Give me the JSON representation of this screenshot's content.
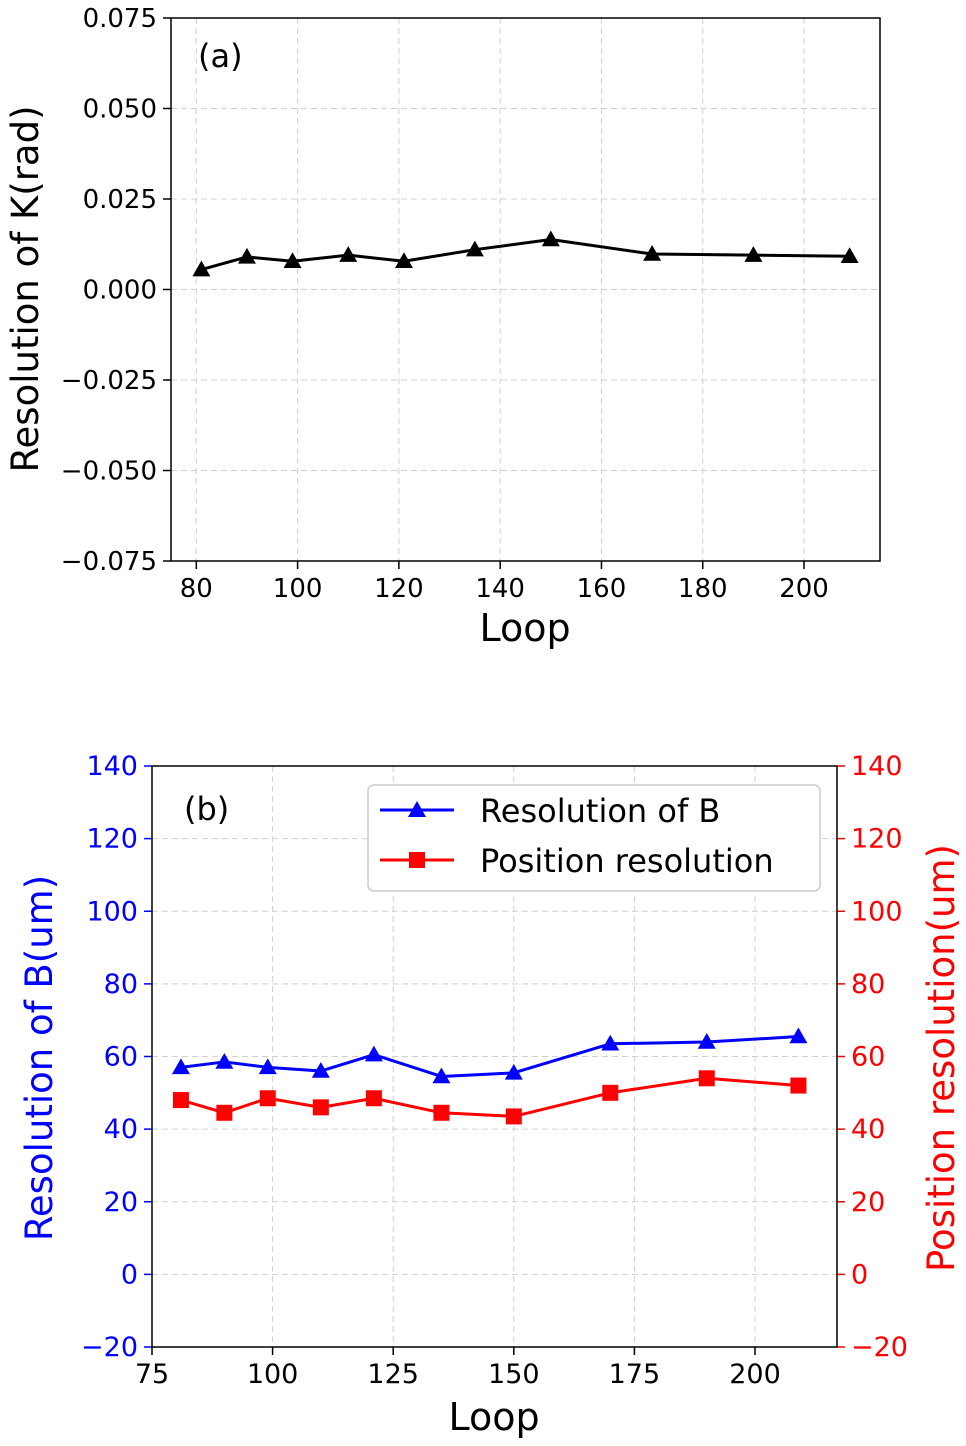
{
  "chart_data": [
    {
      "type": "line",
      "panel_label": "(a)",
      "xlabel": "Loop",
      "ylabel": "Resolution of K(rad)",
      "xlim": [
        75,
        215
      ],
      "ylim": [
        -0.075,
        0.075
      ],
      "xticks": [
        80,
        100,
        120,
        140,
        160,
        180,
        200
      ],
      "xtick_labels": [
        "80",
        "100",
        "120",
        "140",
        "160",
        "180",
        "200"
      ],
      "yticks": [
        -0.075,
        -0.05,
        -0.025,
        0,
        0.025,
        0.05,
        0.075
      ],
      "ytick_labels": [
        "−0.075",
        "−0.050",
        "−0.025",
        "0.000",
        "0.025",
        "0.050",
        "0.075"
      ],
      "grid": true,
      "series": [
        {
          "name": "Resolution of K",
          "color": "#000000",
          "marker": "triangle",
          "x": [
            81,
            90,
            99,
            110,
            121,
            135,
            150,
            170,
            190,
            209
          ],
          "values": [
            0.0055,
            0.009,
            0.0078,
            0.0095,
            0.0078,
            0.011,
            0.0138,
            0.0098,
            0.0095,
            0.0092
          ]
        }
      ]
    },
    {
      "type": "line",
      "panel_label": "(b)",
      "xlabel": "Loop",
      "ylabel_left": "Resolution of B(um)",
      "ylabel_right": "Position resolution(um)",
      "left_axis_color": "#0000ff",
      "right_axis_color": "#ff0000",
      "xlim": [
        75,
        217
      ],
      "ylim": [
        -20,
        140
      ],
      "xticks": [
        75,
        100,
        125,
        150,
        175,
        200
      ],
      "xtick_labels": [
        "75",
        "100",
        "125",
        "150",
        "175",
        "200"
      ],
      "yticks": [
        -20,
        0,
        20,
        40,
        60,
        80,
        100,
        120,
        140
      ],
      "ytick_labels": [
        "−20",
        "0",
        "20",
        "40",
        "60",
        "80",
        "100",
        "120",
        "140"
      ],
      "grid": true,
      "legend_position": "top-right",
      "series": [
        {
          "name": "Resolution of B",
          "color": "#0000ff",
          "marker": "triangle",
          "axis": "left",
          "x": [
            81,
            90,
            99,
            110,
            121,
            135,
            150,
            170,
            190,
            209
          ],
          "values": [
            57,
            58.5,
            57,
            56,
            60.5,
            54.5,
            55.5,
            63.5,
            64,
            65.5
          ]
        },
        {
          "name": "Position resolution",
          "color": "#ff0000",
          "marker": "square",
          "axis": "right",
          "x": [
            81,
            90,
            99,
            110,
            121,
            135,
            150,
            170,
            190,
            209
          ],
          "values": [
            48,
            44.5,
            48.5,
            46,
            48.5,
            44.5,
            43.5,
            50,
            54,
            52
          ]
        }
      ]
    }
  ]
}
